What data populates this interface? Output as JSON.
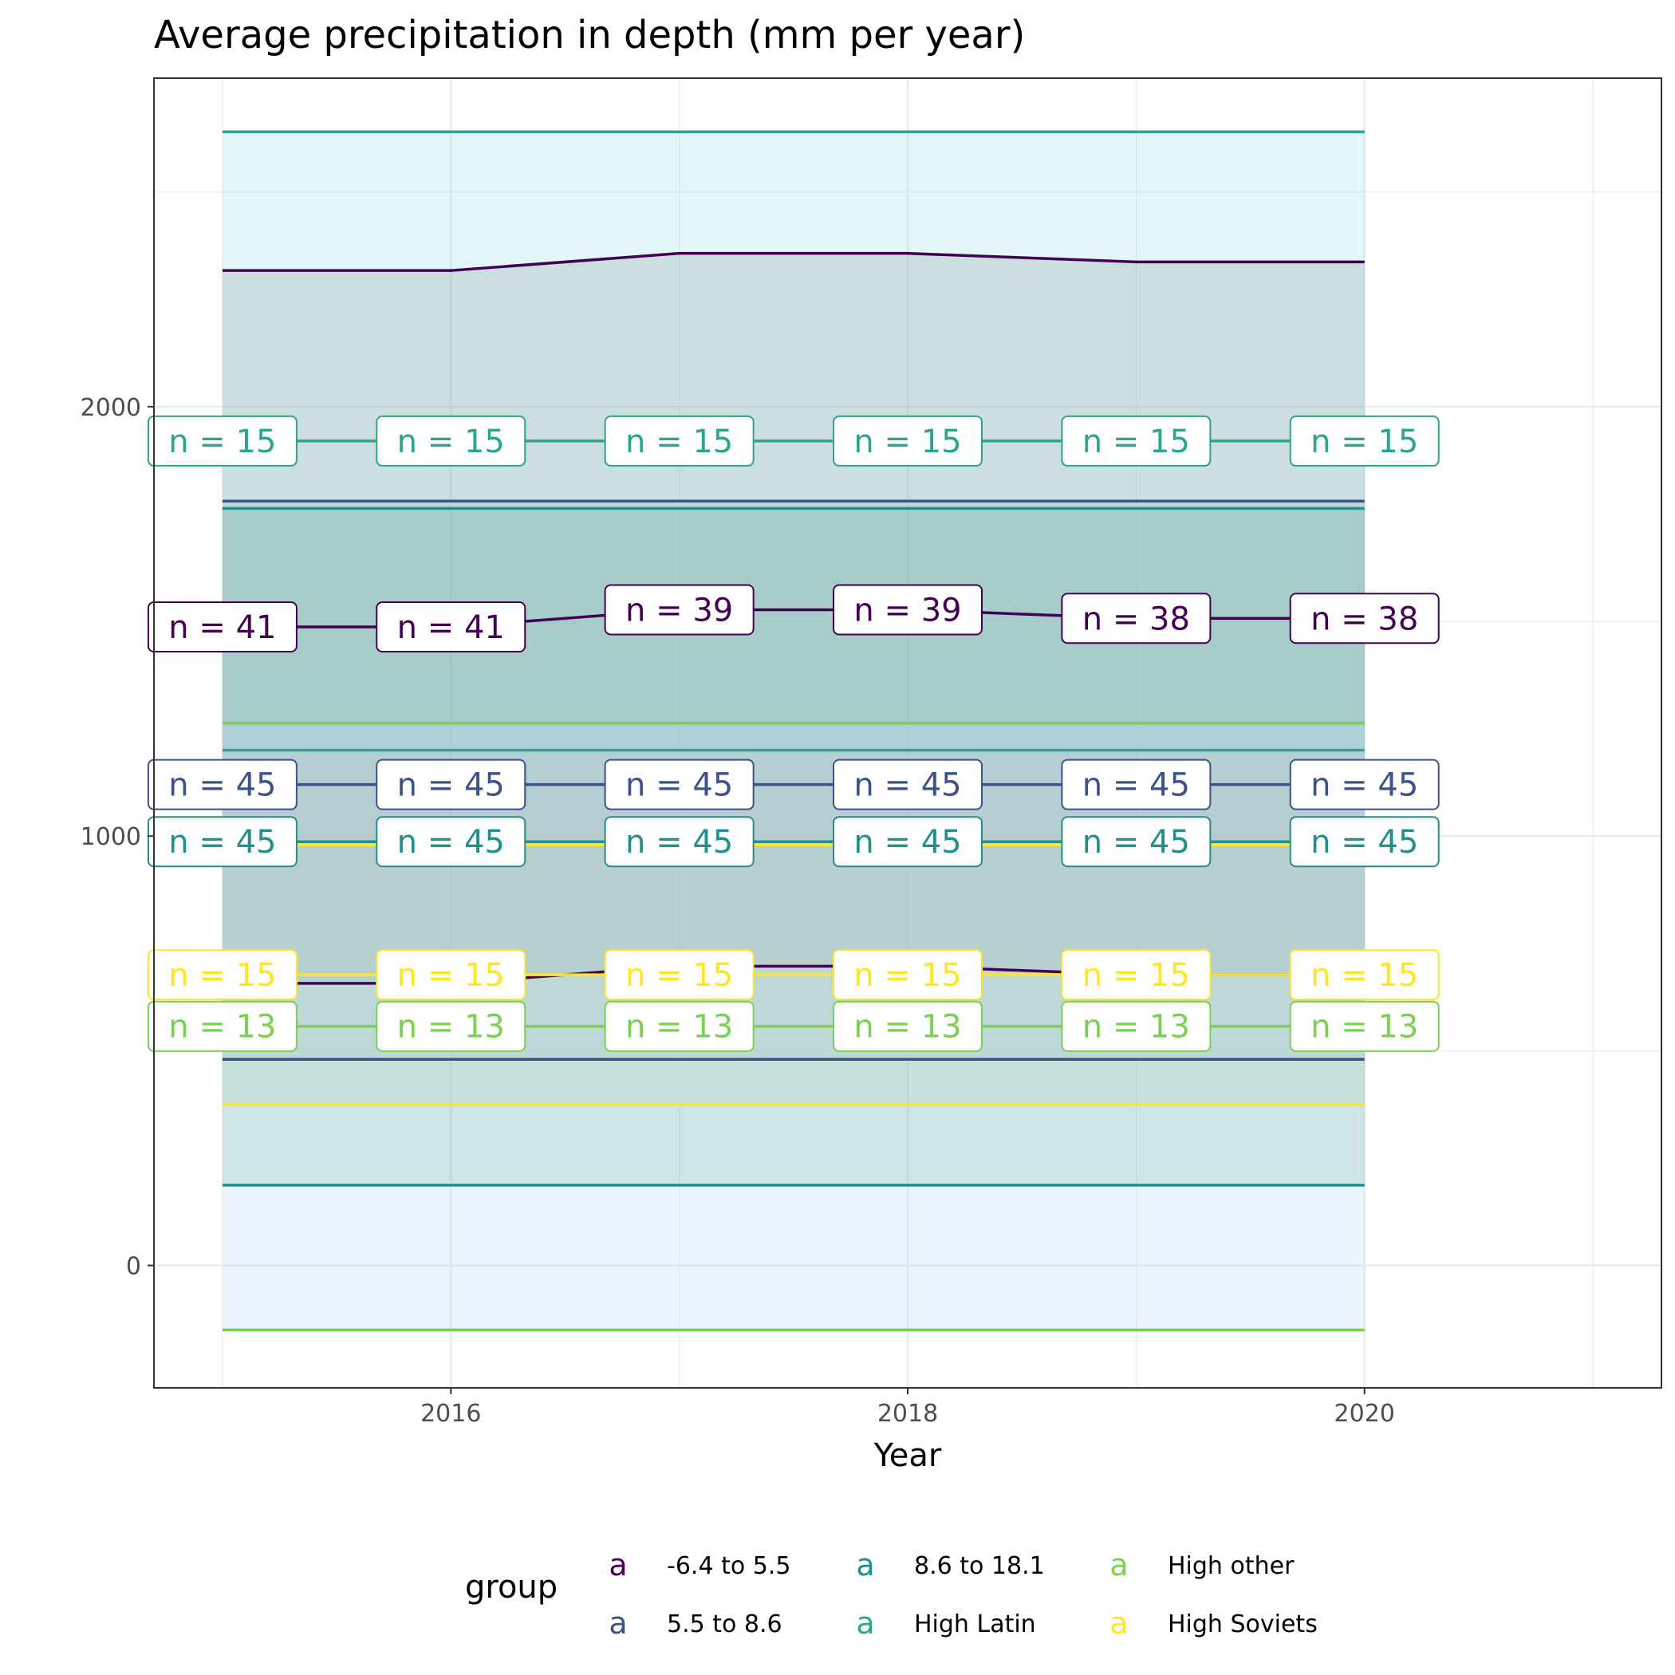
{
  "chart_data": {
    "type": "line",
    "title": "Average precipitation in depth (mm per year)",
    "xlabel": "Year",
    "ylabel": "",
    "xlim": [
      2014.7,
      2021.3
    ],
    "ylim": [
      -285,
      2765
    ],
    "xticks": [
      2016,
      2018,
      2020
    ],
    "yticks": [
      0,
      1000,
      2000
    ],
    "grid": true,
    "legend": {
      "title": "group",
      "position": "bottom",
      "key_glyph": "a"
    },
    "x": [
      2015,
      2016,
      2017,
      2018,
      2019,
      2020
    ],
    "series": [
      {
        "name": "-6.4 to 5.5",
        "color": "#440154",
        "fill": "#7f7f7f",
        "fill_opacity": 0.25,
        "mean": [
          1487,
          1487,
          1527,
          1527,
          1507,
          1507
        ],
        "upper": [
          2317,
          2317,
          2357,
          2357,
          2337,
          2337
        ],
        "lower": [
          657,
          657,
          697,
          697,
          677,
          677
        ],
        "labels": [
          "n = 41",
          "n = 41",
          "n = 39",
          "n = 39",
          "n = 38",
          "n = 38"
        ]
      },
      {
        "name": "5.5 to 8.6",
        "color": "#3b528b",
        "fill": "#b6c4dc",
        "fill_opacity": 0.3,
        "mean": [
          1120,
          1120,
          1120,
          1120,
          1120,
          1120
        ],
        "upper": [
          1780,
          1780,
          1780,
          1780,
          1780,
          1780
        ],
        "lower": [
          480,
          480,
          480,
          480,
          480,
          480
        ],
        "labels": [
          "n = 45",
          "n = 45",
          "n = 45",
          "n = 45",
          "n = 45",
          "n = 45"
        ]
      },
      {
        "name": "8.6 to 18.1",
        "color": "#21908c",
        "fill": "#2e8b57",
        "fill_opacity": 0.2,
        "mean": [
          987,
          987,
          987,
          987,
          987,
          987
        ],
        "upper": [
          1763,
          1763,
          1763,
          1763,
          1763,
          1763
        ],
        "lower": [
          187,
          187,
          187,
          187,
          187,
          187
        ],
        "labels": [
          "n = 45",
          "n = 45",
          "n = 45",
          "n = 45",
          "n = 45",
          "n = 45"
        ]
      },
      {
        "name": "High Latin",
        "color": "#2ca58d",
        "fill": "#8fdde5",
        "fill_opacity": 0.25,
        "mean": [
          1920,
          1920,
          1920,
          1920,
          1920,
          1920
        ],
        "upper": [
          2640,
          2640,
          2640,
          2640,
          2640,
          2640
        ],
        "lower": [
          1200,
          1200,
          1200,
          1200,
          1200,
          1200
        ],
        "labels": [
          "n = 15",
          "n = 15",
          "n = 15",
          "n = 15",
          "n = 15",
          "n = 15"
        ]
      },
      {
        "name": "High other",
        "color": "#7ad151",
        "fill": "#c2d9f7",
        "fill_opacity": 0.3,
        "mean": [
          557,
          557,
          557,
          557,
          557,
          557
        ],
        "upper": [
          1263,
          1263,
          1263,
          1263,
          1263,
          1263
        ],
        "lower": [
          -150,
          -150,
          -150,
          -150,
          -150,
          -150
        ],
        "labels": [
          "n = 13",
          "n = 13",
          "n = 13",
          "n = 13",
          "n = 13",
          "n = 13"
        ]
      },
      {
        "name": "High Soviets",
        "color": "#fde725",
        "fill": "#b2d8c8",
        "fill_opacity": 0.3,
        "mean": [
          677,
          677,
          677,
          677,
          677,
          677
        ],
        "upper": [
          980,
          980,
          980,
          980,
          980,
          980
        ],
        "lower": [
          375,
          375,
          375,
          375,
          375,
          375
        ],
        "labels": [
          "n = 15",
          "n = 15",
          "n = 15",
          "n = 15",
          "n = 15",
          "n = 15"
        ]
      }
    ]
  }
}
